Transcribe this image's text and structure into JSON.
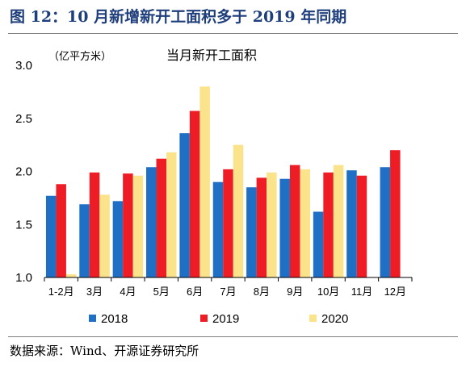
{
  "figure": {
    "title": "图 12：10 月新增新开工面积多于 2019 年同期",
    "source": "数据来源：Wind、开源证券研究所"
  },
  "chart_data": {
    "type": "bar",
    "title": "当月新开工面积",
    "ylabel": "（亿平方米）",
    "xlabel": "",
    "ylim": [
      1.0,
      3.0
    ],
    "yticks": [
      "1.0",
      "1.5",
      "2.0",
      "2.5",
      "3.0"
    ],
    "categories": [
      "1-2月",
      "3月",
      "4月",
      "5月",
      "6月",
      "7月",
      "8月",
      "9月",
      "10月",
      "11月",
      "12月"
    ],
    "series": [
      {
        "name": "2018",
        "color": "#1f6fc5",
        "values": [
          1.77,
          1.69,
          1.72,
          2.04,
          2.36,
          1.9,
          1.85,
          1.93,
          1.62,
          2.01,
          2.04
        ]
      },
      {
        "name": "2019",
        "color": "#ee1c25",
        "values": [
          1.88,
          1.99,
          1.98,
          2.12,
          2.57,
          2.02,
          1.94,
          2.06,
          1.99,
          1.96,
          2.2
        ]
      },
      {
        "name": "2020",
        "color": "#fbe38c",
        "values": [
          1.03,
          1.78,
          1.96,
          2.18,
          2.8,
          2.25,
          1.99,
          2.02,
          2.06,
          null,
          null
        ]
      }
    ],
    "grid": false,
    "legend": "bottom"
  }
}
